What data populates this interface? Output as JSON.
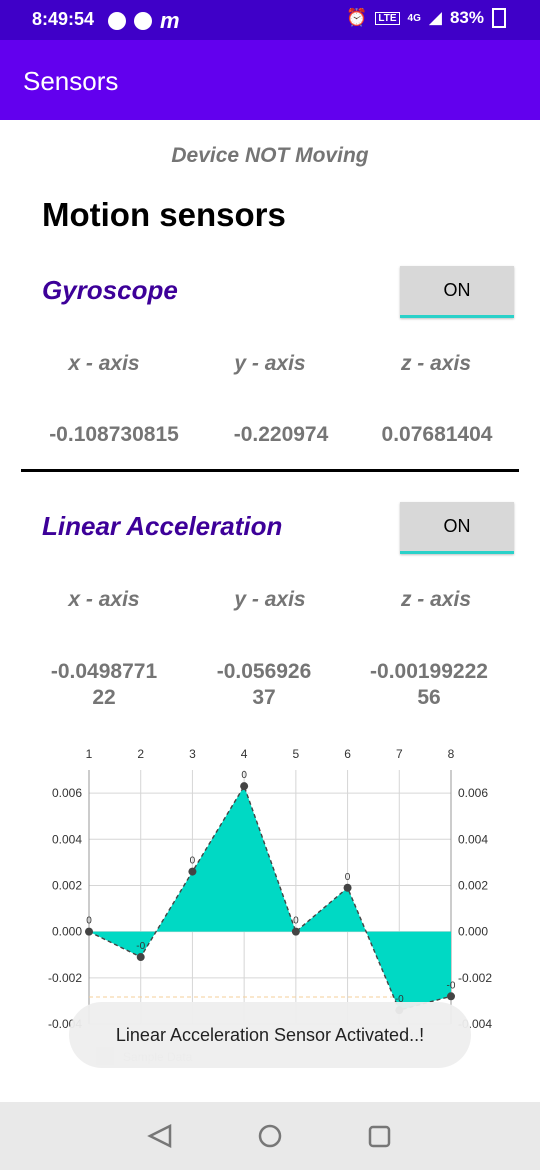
{
  "status_bar": {
    "time": "8:49:54",
    "battery": "83%",
    "network": "4G"
  },
  "app_bar": {
    "title": "Sensors"
  },
  "movement_status": "Device NOT Moving",
  "heading": "Motion sensors",
  "gyroscope": {
    "title": "Gyroscope",
    "button": "ON",
    "axes": [
      "x - axis",
      "y - axis",
      "z - axis"
    ],
    "values": [
      "-0.108730815",
      "-0.220974",
      "0.07681404"
    ]
  },
  "linear_acceleration": {
    "title": "Linear Acceleration",
    "button": "ON",
    "axes": [
      "x - axis",
      "y - axis",
      "z - axis"
    ],
    "values": [
      "-0.0498771\n22",
      "-0.056926\n37",
      "-0.00199222\n56"
    ]
  },
  "chart_data": {
    "type": "area",
    "x": [
      1,
      2,
      3,
      4,
      5,
      6,
      7,
      8
    ],
    "values": [
      0.0,
      -0.0011,
      0.0026,
      0.0063,
      0.0,
      0.0019,
      -0.0034,
      -0.0028
    ],
    "point_labels": [
      "0",
      "-0",
      "0",
      "0",
      "0",
      "0",
      "-0",
      "-0"
    ],
    "x_tick_labels": [
      "1",
      "2",
      "3",
      "4",
      "5",
      "6",
      "7",
      "8"
    ],
    "y_tick_labels": [
      "0.006",
      "0.004",
      "0.002",
      "0.000",
      "-0.002",
      "-0.004"
    ],
    "ylim": [
      -0.004,
      0.007
    ],
    "legend": "Sample Data",
    "colors": {
      "fill": "#00d9c4",
      "line": "#444444",
      "limit_line": "#f5cf9a"
    }
  },
  "toast": "Linear Acceleration Sensor Activated..!"
}
